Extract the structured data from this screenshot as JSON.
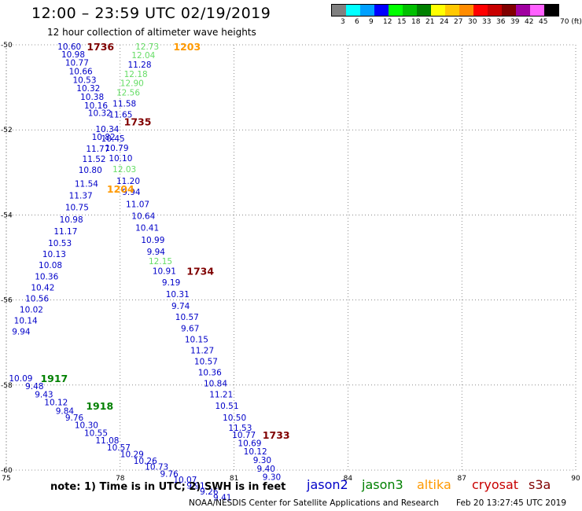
{
  "header": {
    "title": "12:00 – 23:59 UTC 02/19/2019",
    "subtitle": "12 hour collection of altimeter wave heights"
  },
  "color_scale": {
    "unit": "70 (ft)",
    "bins": [
      {
        "label": "3",
        "color": "#808080"
      },
      {
        "label": "6",
        "color": "#00ffff"
      },
      {
        "label": "9",
        "color": "#00a0ff"
      },
      {
        "label": "12",
        "color": "#0000ff"
      },
      {
        "label": "15",
        "color": "#00ff00"
      },
      {
        "label": "18",
        "color": "#00c000"
      },
      {
        "label": "21",
        "color": "#008000"
      },
      {
        "label": "24",
        "color": "#ffff00"
      },
      {
        "label": "27",
        "color": "#ffc800"
      },
      {
        "label": "30",
        "color": "#ff8c00"
      },
      {
        "label": "33",
        "color": "#ff0000"
      },
      {
        "label": "36",
        "color": "#c80000"
      },
      {
        "label": "39",
        "color": "#800000"
      },
      {
        "label": "42",
        "color": "#a000a0"
      },
      {
        "label": "45",
        "color": "#ff60ff"
      },
      {
        "label": "70",
        "color": "#000000"
      }
    ]
  },
  "map": {
    "lon_ticks": [
      "75",
      "78",
      "81",
      "84",
      "87",
      "90"
    ],
    "lat_ticks": [
      "-50",
      "-52",
      "-54",
      "-56",
      "-58",
      "-60"
    ],
    "lon_range": [
      75,
      90
    ],
    "lat_range": [
      -50,
      -60
    ],
    "time_labels": [
      {
        "text": "1736",
        "lon": 77.12,
        "lat": -50.04,
        "color": "#800000"
      },
      {
        "text": "1203",
        "lon": 79.4,
        "lat": -50.04,
        "color": "#ff9900"
      },
      {
        "text": "1735",
        "lon": 78.1,
        "lat": -51.8,
        "color": "#800000"
      },
      {
        "text": "1204",
        "lon": 77.65,
        "lat": -53.38,
        "color": "#ff9900"
      },
      {
        "text": "1734",
        "lon": 79.75,
        "lat": -55.31,
        "color": "#800000"
      },
      {
        "text": "1917",
        "lon": 75.9,
        "lat": -57.84,
        "color": "#008000"
      },
      {
        "text": "1918",
        "lon": 77.1,
        "lat": -58.48,
        "color": "#008000"
      },
      {
        "text": "1733",
        "lon": 81.75,
        "lat": -59.17,
        "color": "#800000"
      }
    ],
    "wave_heights": [
      {
        "text": "10.60",
        "lon": 76.35,
        "lat": -50.04,
        "color": "#0000c8"
      },
      {
        "text": "10.98",
        "lon": 76.45,
        "lat": -50.22,
        "color": "#0000c8"
      },
      {
        "text": "10.77",
        "lon": 76.55,
        "lat": -50.42,
        "color": "#0000c8"
      },
      {
        "text": "10.66",
        "lon": 76.65,
        "lat": -50.62,
        "color": "#0000c8"
      },
      {
        "text": "10.53",
        "lon": 76.75,
        "lat": -50.82,
        "color": "#0000c8"
      },
      {
        "text": "10.32",
        "lon": 76.85,
        "lat": -51.02,
        "color": "#0000c8"
      },
      {
        "text": "10.38",
        "lon": 76.95,
        "lat": -51.22,
        "color": "#0000c8"
      },
      {
        "text": "10.16",
        "lon": 77.05,
        "lat": -51.42,
        "color": "#0000c8"
      },
      {
        "text": "10.32",
        "lon": 77.15,
        "lat": -51.6,
        "color": "#0000c8"
      },
      {
        "text": "10.34",
        "lon": 77.35,
        "lat": -51.98,
        "color": "#0000c8"
      },
      {
        "text": "10.82",
        "lon": 77.25,
        "lat": -52.16,
        "color": "#0000c8"
      },
      {
        "text": "11.77",
        "lon": 77.1,
        "lat": -52.44,
        "color": "#0000c8"
      },
      {
        "text": "11.52",
        "lon": 77.0,
        "lat": -52.68,
        "color": "#0000c8"
      },
      {
        "text": "10.80",
        "lon": 76.9,
        "lat": -52.94,
        "color": "#0000c8"
      },
      {
        "text": "11.54",
        "lon": 76.8,
        "lat": -53.26,
        "color": "#0000c8"
      },
      {
        "text": "11.37",
        "lon": 76.65,
        "lat": -53.54,
        "color": "#0000c8"
      },
      {
        "text": "10.75",
        "lon": 76.55,
        "lat": -53.82,
        "color": "#0000c8"
      },
      {
        "text": "10.98",
        "lon": 76.4,
        "lat": -54.1,
        "color": "#0000c8"
      },
      {
        "text": "11.17",
        "lon": 76.25,
        "lat": -54.38,
        "color": "#0000c8"
      },
      {
        "text": "10.53",
        "lon": 76.1,
        "lat": -54.66,
        "color": "#0000c8"
      },
      {
        "text": "10.13",
        "lon": 75.95,
        "lat": -54.92,
        "color": "#0000c8"
      },
      {
        "text": "10.08",
        "lon": 75.85,
        "lat": -55.18,
        "color": "#0000c8"
      },
      {
        "text": "10.36",
        "lon": 75.75,
        "lat": -55.44,
        "color": "#0000c8"
      },
      {
        "text": "10.42",
        "lon": 75.65,
        "lat": -55.7,
        "color": "#0000c8"
      },
      {
        "text": "10.56",
        "lon": 75.5,
        "lat": -55.96,
        "color": "#0000c8"
      },
      {
        "text": "10.02",
        "lon": 75.35,
        "lat": -56.22,
        "color": "#0000c8"
      },
      {
        "text": "10.14",
        "lon": 75.2,
        "lat": -56.48,
        "color": "#0000c8"
      },
      {
        "text": "9.94",
        "lon": 75.15,
        "lat": -56.74,
        "color": "#0000c8"
      },
      {
        "text": "10.09",
        "lon": 75.07,
        "lat": -57.84,
        "color": "#0000c8"
      },
      {
        "text": "9.48",
        "lon": 75.5,
        "lat": -58.02,
        "color": "#0000c8"
      },
      {
        "text": "9.43",
        "lon": 75.75,
        "lat": -58.22,
        "color": "#0000c8"
      },
      {
        "text": "10.12",
        "lon": 76.0,
        "lat": -58.4,
        "color": "#0000c8"
      },
      {
        "text": "9.84",
        "lon": 76.3,
        "lat": -58.6,
        "color": "#0000c8"
      },
      {
        "text": "9.76",
        "lon": 76.55,
        "lat": -58.76,
        "color": "#0000c8"
      },
      {
        "text": "10.30",
        "lon": 76.8,
        "lat": -58.94,
        "color": "#0000c8"
      },
      {
        "text": "10.55",
        "lon": 77.05,
        "lat": -59.12,
        "color": "#0000c8"
      },
      {
        "text": "11.08",
        "lon": 77.35,
        "lat": -59.3,
        "color": "#0000c8"
      },
      {
        "text": "10.57",
        "lon": 77.65,
        "lat": -59.46,
        "color": "#0000c8"
      },
      {
        "text": "10.29",
        "lon": 78.0,
        "lat": -59.62,
        "color": "#0000c8"
      },
      {
        "text": "10.26",
        "lon": 78.35,
        "lat": -59.78,
        "color": "#0000c8"
      },
      {
        "text": "10.73",
        "lon": 78.65,
        "lat": -59.92,
        "color": "#0000c8"
      },
      {
        "text": "9.76",
        "lon": 79.05,
        "lat": -60.08,
        "color": "#0000c8"
      },
      {
        "text": "10.07",
        "lon": 79.4,
        "lat": -60.22,
        "color": "#0000c8"
      },
      {
        "text": "9.91",
        "lon": 79.75,
        "lat": -60.36,
        "color": "#0000c8"
      },
      {
        "text": "9.26",
        "lon": 80.1,
        "lat": -60.5,
        "color": "#0000c8"
      },
      {
        "text": "9.41",
        "lon": 80.45,
        "lat": -60.64,
        "color": "#0000c8"
      },
      {
        "text": "12.73",
        "lon": 78.4,
        "lat": -50.04,
        "color": "#66dd66"
      },
      {
        "text": "12.04",
        "lon": 78.3,
        "lat": -50.24,
        "color": "#66dd66"
      },
      {
        "text": "11.28",
        "lon": 78.2,
        "lat": -50.46,
        "color": "#0000c8"
      },
      {
        "text": "12.18",
        "lon": 78.1,
        "lat": -50.68,
        "color": "#66dd66"
      },
      {
        "text": "12.90",
        "lon": 78.0,
        "lat": -50.9,
        "color": "#66dd66"
      },
      {
        "text": "12.56",
        "lon": 77.9,
        "lat": -51.12,
        "color": "#66dd66"
      },
      {
        "text": "11.58",
        "lon": 77.8,
        "lat": -51.38,
        "color": "#0000c8"
      },
      {
        "text": "11.65",
        "lon": 77.7,
        "lat": -51.64,
        "color": "#0000c8"
      },
      {
        "text": "10.79",
        "lon": 77.6,
        "lat": -52.42,
        "color": "#0000c8"
      },
      {
        "text": "10.45",
        "lon": 77.5,
        "lat": -52.2,
        "color": "#0000c8"
      },
      {
        "text": "10.10",
        "lon": 77.7,
        "lat": -52.66,
        "color": "#0000c8"
      },
      {
        "text": "12.03",
        "lon": 77.8,
        "lat": -52.92,
        "color": "#66dd66"
      },
      {
        "text": "11.20",
        "lon": 77.9,
        "lat": -53.2,
        "color": "#0000c8"
      },
      {
        "text": "9.94",
        "lon": 78.05,
        "lat": -53.46,
        "color": "#0000c8"
      },
      {
        "text": "11.07",
        "lon": 78.15,
        "lat": -53.74,
        "color": "#0000c8"
      },
      {
        "text": "10.64",
        "lon": 78.3,
        "lat": -54.02,
        "color": "#0000c8"
      },
      {
        "text": "10.41",
        "lon": 78.4,
        "lat": -54.3,
        "color": "#0000c8"
      },
      {
        "text": "10.99",
        "lon": 78.55,
        "lat": -54.58,
        "color": "#0000c8"
      },
      {
        "text": "9.94",
        "lon": 78.7,
        "lat": -54.86,
        "color": "#0000c8"
      },
      {
        "text": "12.15",
        "lon": 78.75,
        "lat": -55.08,
        "color": "#66dd66"
      },
      {
        "text": "10.91",
        "lon": 78.85,
        "lat": -55.31,
        "color": "#0000c8"
      },
      {
        "text": "9.19",
        "lon": 79.1,
        "lat": -55.58,
        "color": "#0000c8"
      },
      {
        "text": "10.31",
        "lon": 79.2,
        "lat": -55.86,
        "color": "#0000c8"
      },
      {
        "text": "9.74",
        "lon": 79.35,
        "lat": -56.14,
        "color": "#0000c8"
      },
      {
        "text": "10.57",
        "lon": 79.45,
        "lat": -56.4,
        "color": "#0000c8"
      },
      {
        "text": "9.67",
        "lon": 79.6,
        "lat": -56.66,
        "color": "#0000c8"
      },
      {
        "text": "10.15",
        "lon": 79.7,
        "lat": -56.92,
        "color": "#0000c8"
      },
      {
        "text": "11.27",
        "lon": 79.85,
        "lat": -57.18,
        "color": "#0000c8"
      },
      {
        "text": "10.57",
        "lon": 79.95,
        "lat": -57.44,
        "color": "#0000c8"
      },
      {
        "text": "10.36",
        "lon": 80.05,
        "lat": -57.7,
        "color": "#0000c8"
      },
      {
        "text": "10.84",
        "lon": 80.2,
        "lat": -57.96,
        "color": "#0000c8"
      },
      {
        "text": "11.21",
        "lon": 80.35,
        "lat": -58.22,
        "color": "#0000c8"
      },
      {
        "text": "10.51",
        "lon": 80.5,
        "lat": -58.48,
        "color": "#0000c8"
      },
      {
        "text": "10.50",
        "lon": 80.7,
        "lat": -58.76,
        "color": "#0000c8"
      },
      {
        "text": "11.53",
        "lon": 80.85,
        "lat": -59.0,
        "color": "#0000c8"
      },
      {
        "text": "10.77",
        "lon": 80.95,
        "lat": -59.17,
        "color": "#0000c8"
      },
      {
        "text": "10.69",
        "lon": 81.1,
        "lat": -59.36,
        "color": "#0000c8"
      },
      {
        "text": "10.12",
        "lon": 81.25,
        "lat": -59.56,
        "color": "#0000c8"
      },
      {
        "text": "9.30",
        "lon": 81.5,
        "lat": -59.76,
        "color": "#0000c8"
      },
      {
        "text": "9.40",
        "lon": 81.6,
        "lat": -59.96,
        "color": "#0000c8"
      },
      {
        "text": "9.30",
        "lon": 81.75,
        "lat": -60.16,
        "color": "#0000c8"
      }
    ]
  },
  "footer": {
    "note": "note: 1) Time is in UTC; 2) SWH is in feet",
    "satellites": [
      {
        "name": "jason2",
        "color": "#0000c8"
      },
      {
        "name": "jason3",
        "color": "#008000"
      },
      {
        "name": "altika",
        "color": "#ff9900"
      },
      {
        "name": "cryosat",
        "color": "#c80000"
      },
      {
        "name": "s3a",
        "color": "#800000"
      }
    ],
    "credit": "NOAA/NESDIS Center for Satellite Applications and Research",
    "timestamp": "Feb 20 13:27:45 UTC 2019"
  }
}
